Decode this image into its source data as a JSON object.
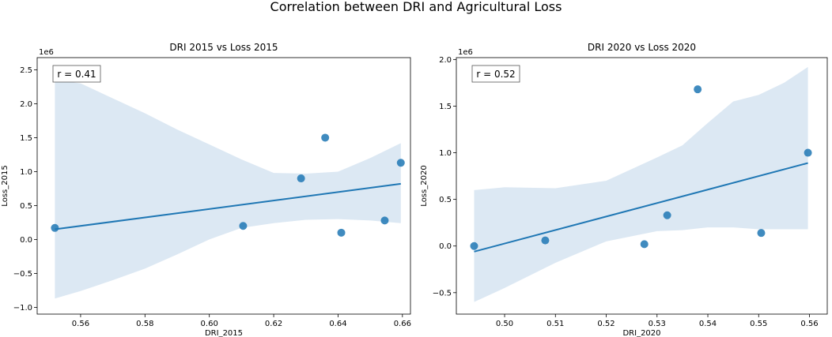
{
  "figure": {
    "suptitle": "Correlation between DRI and Agricultural Loss"
  },
  "colors": {
    "point": "#1f77b4",
    "line": "#1f77b4",
    "band": "#dce8f3",
    "axis": "#000000",
    "background": "#ffffff"
  },
  "chart_data": [
    {
      "type": "scatter",
      "title": "DRI 2015 vs Loss 2015",
      "xlabel": "DRI_2015",
      "ylabel": "Loss_2015",
      "y_offset_label": "1e6",
      "annotation": "r = 0.41",
      "xlim": [
        0.5465,
        0.6625
      ],
      "ylim": [
        -1.1,
        2.68
      ],
      "xticks": [
        0.56,
        0.58,
        0.6,
        0.62,
        0.64,
        0.66
      ],
      "xtick_labels": [
        "0.56",
        "0.58",
        "0.60",
        "0.62",
        "0.64",
        "0.66"
      ],
      "yticks": [
        -1.0,
        -0.5,
        0.0,
        0.5,
        1.0,
        1.5,
        2.0,
        2.5
      ],
      "ytick_labels": [
        "−1.0",
        "−0.5",
        "0.0",
        "0.5",
        "1.0",
        "1.5",
        "2.0",
        "2.5"
      ],
      "points": [
        {
          "x": 0.552,
          "y": 0.17
        },
        {
          "x": 0.6105,
          "y": 0.2
        },
        {
          "x": 0.6285,
          "y": 0.9
        },
        {
          "x": 0.636,
          "y": 1.5
        },
        {
          "x": 0.641,
          "y": 0.1
        },
        {
          "x": 0.6545,
          "y": 0.28
        },
        {
          "x": 0.6595,
          "y": 1.13
        }
      ],
      "regression": {
        "x": [
          0.552,
          0.6595
        ],
        "y": [
          0.15,
          0.82
        ]
      },
      "ci_band": {
        "x": [
          0.552,
          0.56,
          0.57,
          0.58,
          0.59,
          0.6,
          0.61,
          0.62,
          0.63,
          0.64,
          0.65,
          0.6595
        ],
        "upper": [
          2.35,
          2.3,
          2.08,
          1.86,
          1.62,
          1.4,
          1.18,
          0.98,
          0.97,
          1.0,
          1.2,
          1.42
        ],
        "lower": [
          -0.87,
          -0.76,
          -0.6,
          -0.43,
          -0.22,
          0.0,
          0.17,
          0.24,
          0.29,
          0.3,
          0.28,
          0.24
        ]
      }
    },
    {
      "type": "scatter",
      "title": "DRI 2020 vs Loss 2020",
      "xlabel": "DRI_2020",
      "ylabel": "Loss_2020",
      "y_offset_label": "1e6",
      "annotation": "r = 0.52",
      "xlim": [
        0.4905,
        0.5635
      ],
      "ylim": [
        -0.73,
        2.02
      ],
      "xticks": [
        0.5,
        0.51,
        0.52,
        0.53,
        0.54,
        0.55,
        0.56
      ],
      "xtick_labels": [
        "0.50",
        "0.51",
        "0.52",
        "0.53",
        "0.54",
        "0.55",
        "0.56"
      ],
      "yticks": [
        -0.5,
        0.0,
        0.5,
        1.0,
        1.5,
        2.0
      ],
      "ytick_labels": [
        "−0.5",
        "0.0",
        "0.5",
        "1.0",
        "1.5",
        "2.0"
      ],
      "points": [
        {
          "x": 0.494,
          "y": 0.0
        },
        {
          "x": 0.508,
          "y": 0.06
        },
        {
          "x": 0.5275,
          "y": 0.02
        },
        {
          "x": 0.532,
          "y": 0.33
        },
        {
          "x": 0.538,
          "y": 1.68
        },
        {
          "x": 0.5505,
          "y": 0.14
        },
        {
          "x": 0.5597,
          "y": 1.0
        }
      ],
      "regression": {
        "x": [
          0.494,
          0.5597
        ],
        "y": [
          -0.06,
          0.89
        ]
      },
      "ci_band": {
        "x": [
          0.494,
          0.5,
          0.51,
          0.52,
          0.53,
          0.535,
          0.54,
          0.545,
          0.55,
          0.555,
          0.5597
        ],
        "upper": [
          0.6,
          0.63,
          0.62,
          0.7,
          0.95,
          1.08,
          1.32,
          1.55,
          1.62,
          1.75,
          1.92
        ],
        "lower": [
          -0.6,
          -0.45,
          -0.18,
          0.05,
          0.16,
          0.17,
          0.2,
          0.2,
          0.18,
          0.18,
          0.18
        ]
      }
    }
  ]
}
